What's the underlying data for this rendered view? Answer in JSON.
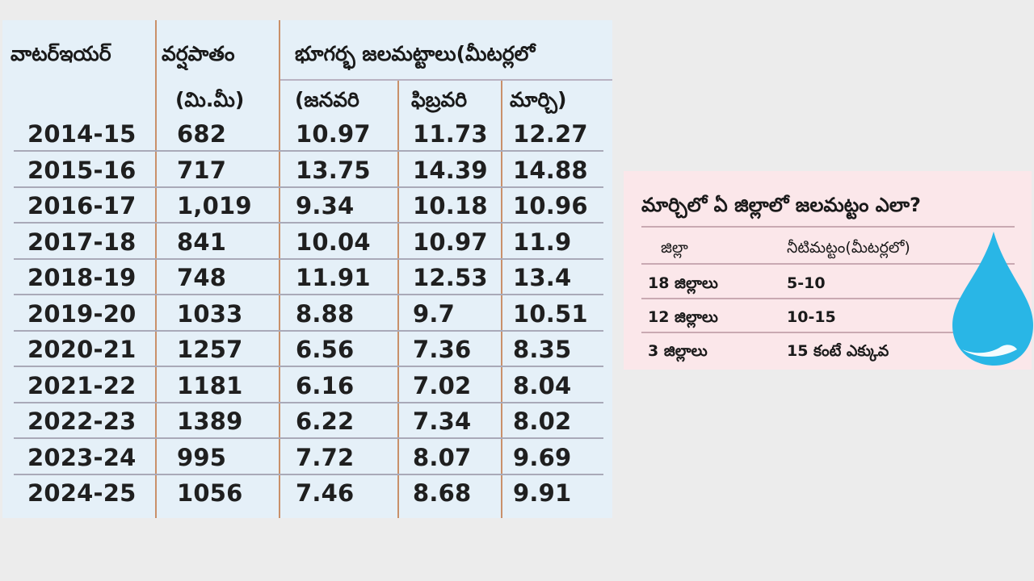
{
  "table": {
    "headers": {
      "col1": "వాటర్ఇయర్",
      "col2_line1": "వర్షపాతం",
      "col2_line2": "(మి.మీ)",
      "group": "భూగర్భ జలమట్టాలు(మీటర్లలో",
      "jan": "(జనవరి",
      "feb": "ఫిబ్రవరి",
      "mar": "మార్చి)"
    },
    "rows": [
      {
        "year": "2014-15",
        "rain": "682",
        "jan": "10.97",
        "feb": "11.73",
        "mar": "12.27"
      },
      {
        "year": "2015-16",
        "rain": "717",
        "jan": "13.75",
        "feb": "14.39",
        "mar": "14.88"
      },
      {
        "year": "2016-17",
        "rain": "1,019",
        "jan": "9.34",
        "feb": "10.18",
        "mar": "10.96"
      },
      {
        "year": "2017-18",
        "rain": "841",
        "jan": "10.04",
        "feb": "10.97",
        "mar": "11.9"
      },
      {
        "year": "2018-19",
        "rain": "748",
        "jan": "11.91",
        "feb": "12.53",
        "mar": "13.4"
      },
      {
        "year": "2019-20",
        "rain": "1033",
        "jan": "8.88",
        "feb": "9.7",
        "mar": "10.51"
      },
      {
        "year": "2020-21",
        "rain": "1257",
        "jan": "6.56",
        "feb": "7.36",
        "mar": "8.35"
      },
      {
        "year": "2021-22",
        "rain": "1181",
        "jan": "6.16",
        "feb": "7.02",
        "mar": "8.04"
      },
      {
        "year": "2022-23",
        "rain": "1389",
        "jan": "6.22",
        "feb": "7.34",
        "mar": "8.02"
      },
      {
        "year": "2023-24",
        "rain": "995",
        "jan": "7.72",
        "feb": "8.07",
        "mar": "9.69"
      },
      {
        "year": "2024-25",
        "rain": "1056",
        "jan": "7.46",
        "feb": "8.68",
        "mar": "9.91"
      }
    ]
  },
  "side": {
    "title": "మార్చిలో ఏ జిల్లాలో జలమట్టం ఎలా?",
    "col_district": "జిల్లా",
    "col_level": "నీటిమట్టం(మీటర్లలో)",
    "rows": [
      {
        "district": "18 జిల్లాలు",
        "level": "5-10"
      },
      {
        "district": "12 జిల్లాలు",
        "level": "10-15"
      },
      {
        "district": "3 జిల్లాలు",
        "level": "15 కంటే ఎక్కువ"
      }
    ]
  },
  "icons": {
    "drop": "water-drop-icon"
  },
  "colors": {
    "table_bg": "#e5f0f8",
    "side_bg": "#fbe7ea",
    "drop_blue": "#29b6e6",
    "divider": "#c9906a"
  }
}
